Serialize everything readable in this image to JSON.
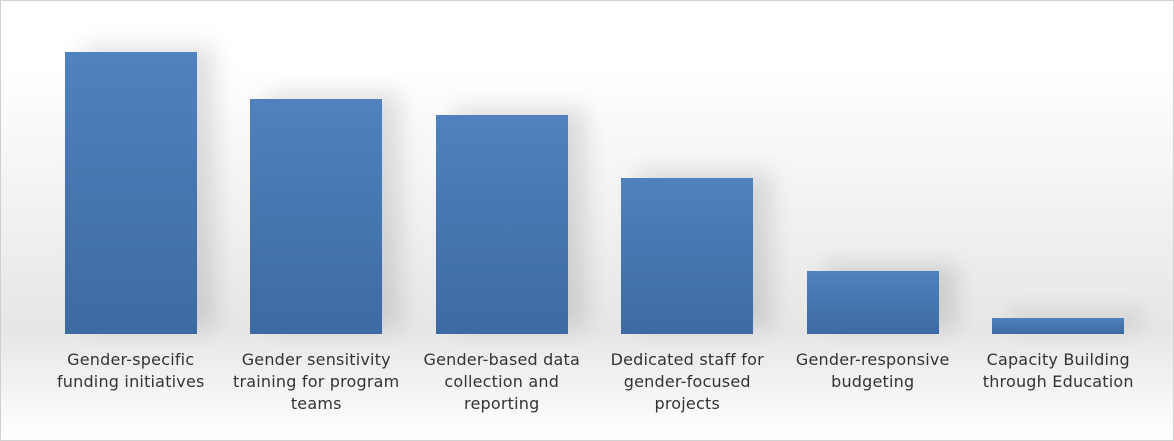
{
  "chart_data": {
    "type": "bar",
    "categories": [
      "Gender-specific funding initiatives",
      "Gender sensitivity training for program teams",
      "Gender-based data collection and reporting",
      "Dedicated staff for gender-focused projects",
      "Gender-responsive budgeting",
      "Capacity Building through Education"
    ],
    "values": [
      90,
      75,
      70,
      50,
      20,
      5
    ],
    "color": "#4a7ab5",
    "ylim": [
      0,
      100
    ]
  }
}
